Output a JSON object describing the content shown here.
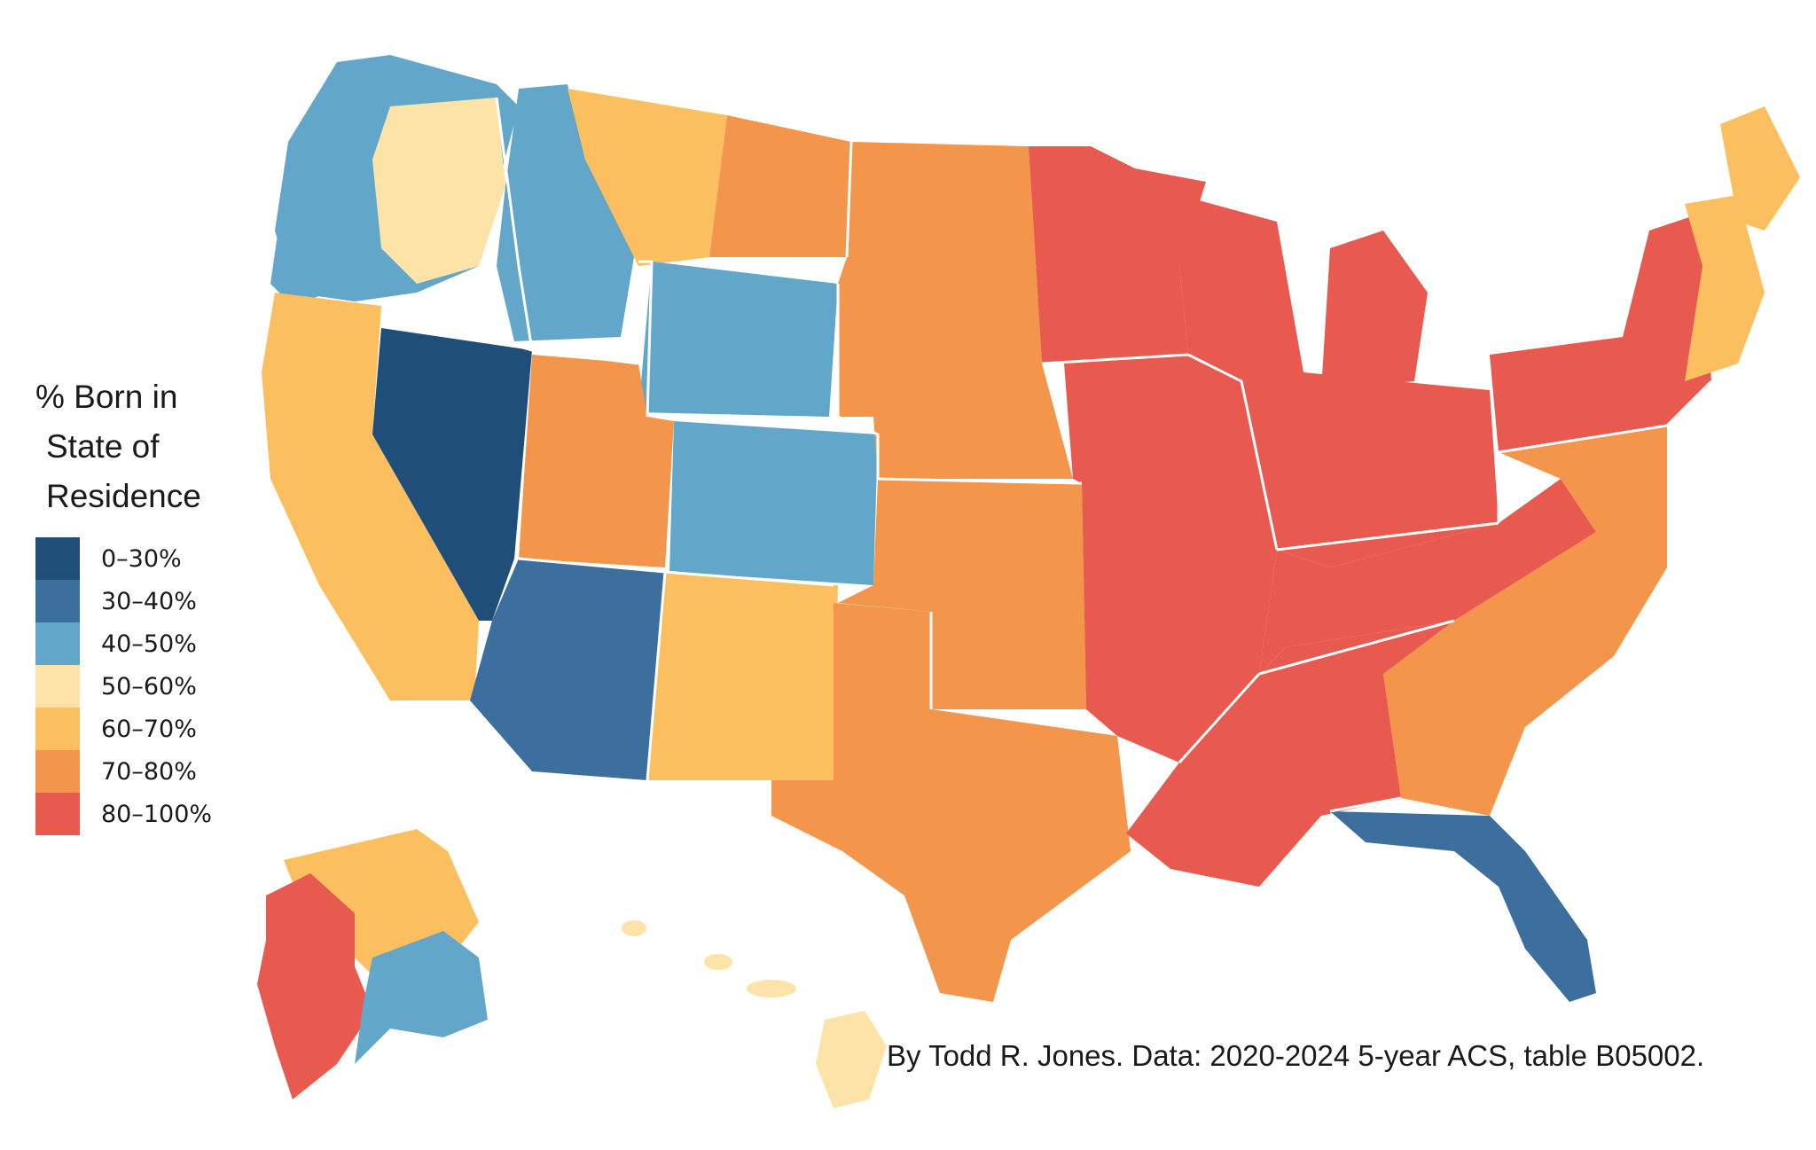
{
  "legend": {
    "title_lines": [
      "% Born in",
      "State of",
      "Residence"
    ],
    "items": [
      {
        "label": "0–30%",
        "color": "#1f4e79"
      },
      {
        "label": "30–40%",
        "color": "#3c6f9e"
      },
      {
        "label": "40–50%",
        "color": "#62a7c9"
      },
      {
        "label": "50–60%",
        "color": "#fde3a8"
      },
      {
        "label": "60–70%",
        "color": "#fbbf5f"
      },
      {
        "label": "70–80%",
        "color": "#f3954a"
      },
      {
        "label": "80–100%",
        "color": "#e8594f"
      }
    ]
  },
  "credit": "By Todd R. Jones. Data: 2020-2024 5-year ACS, table B05002.",
  "regions": [
    {
      "id": "pacific-northwest",
      "bin": 2
    },
    {
      "id": "oregon-coast",
      "bin": 2
    },
    {
      "id": "washington-east",
      "bin": 3
    },
    {
      "id": "idaho",
      "bin": 2
    },
    {
      "id": "montana-west",
      "bin": 4
    },
    {
      "id": "montana-east",
      "bin": 5
    },
    {
      "id": "wyoming",
      "bin": 2
    },
    {
      "id": "california",
      "bin": 4
    },
    {
      "id": "nevada",
      "bin": 0
    },
    {
      "id": "utah",
      "bin": 5
    },
    {
      "id": "colorado",
      "bin": 2
    },
    {
      "id": "arizona",
      "bin": 1
    },
    {
      "id": "new-mexico",
      "bin": 4
    },
    {
      "id": "dakotas-nebraska",
      "bin": 5
    },
    {
      "id": "kansas-oklahoma",
      "bin": 5
    },
    {
      "id": "texas",
      "bin": 5
    },
    {
      "id": "minnesota-iowa",
      "bin": 6
    },
    {
      "id": "mississippi-valley",
      "bin": 6
    },
    {
      "id": "great-lakes",
      "bin": 6
    },
    {
      "id": "michigan",
      "bin": 6
    },
    {
      "id": "pennsylvania-ny",
      "bin": 6
    },
    {
      "id": "appalachia",
      "bin": 6
    },
    {
      "id": "southeast",
      "bin": 5
    },
    {
      "id": "deep-south",
      "bin": 6
    },
    {
      "id": "florida",
      "bin": 1
    },
    {
      "id": "new-england",
      "bin": 4
    },
    {
      "id": "maine",
      "bin": 4
    },
    {
      "id": "alaska-north",
      "bin": 4
    },
    {
      "id": "alaska-west",
      "bin": 6
    },
    {
      "id": "alaska-south",
      "bin": 2
    },
    {
      "id": "hawaii",
      "bin": 3
    }
  ]
}
